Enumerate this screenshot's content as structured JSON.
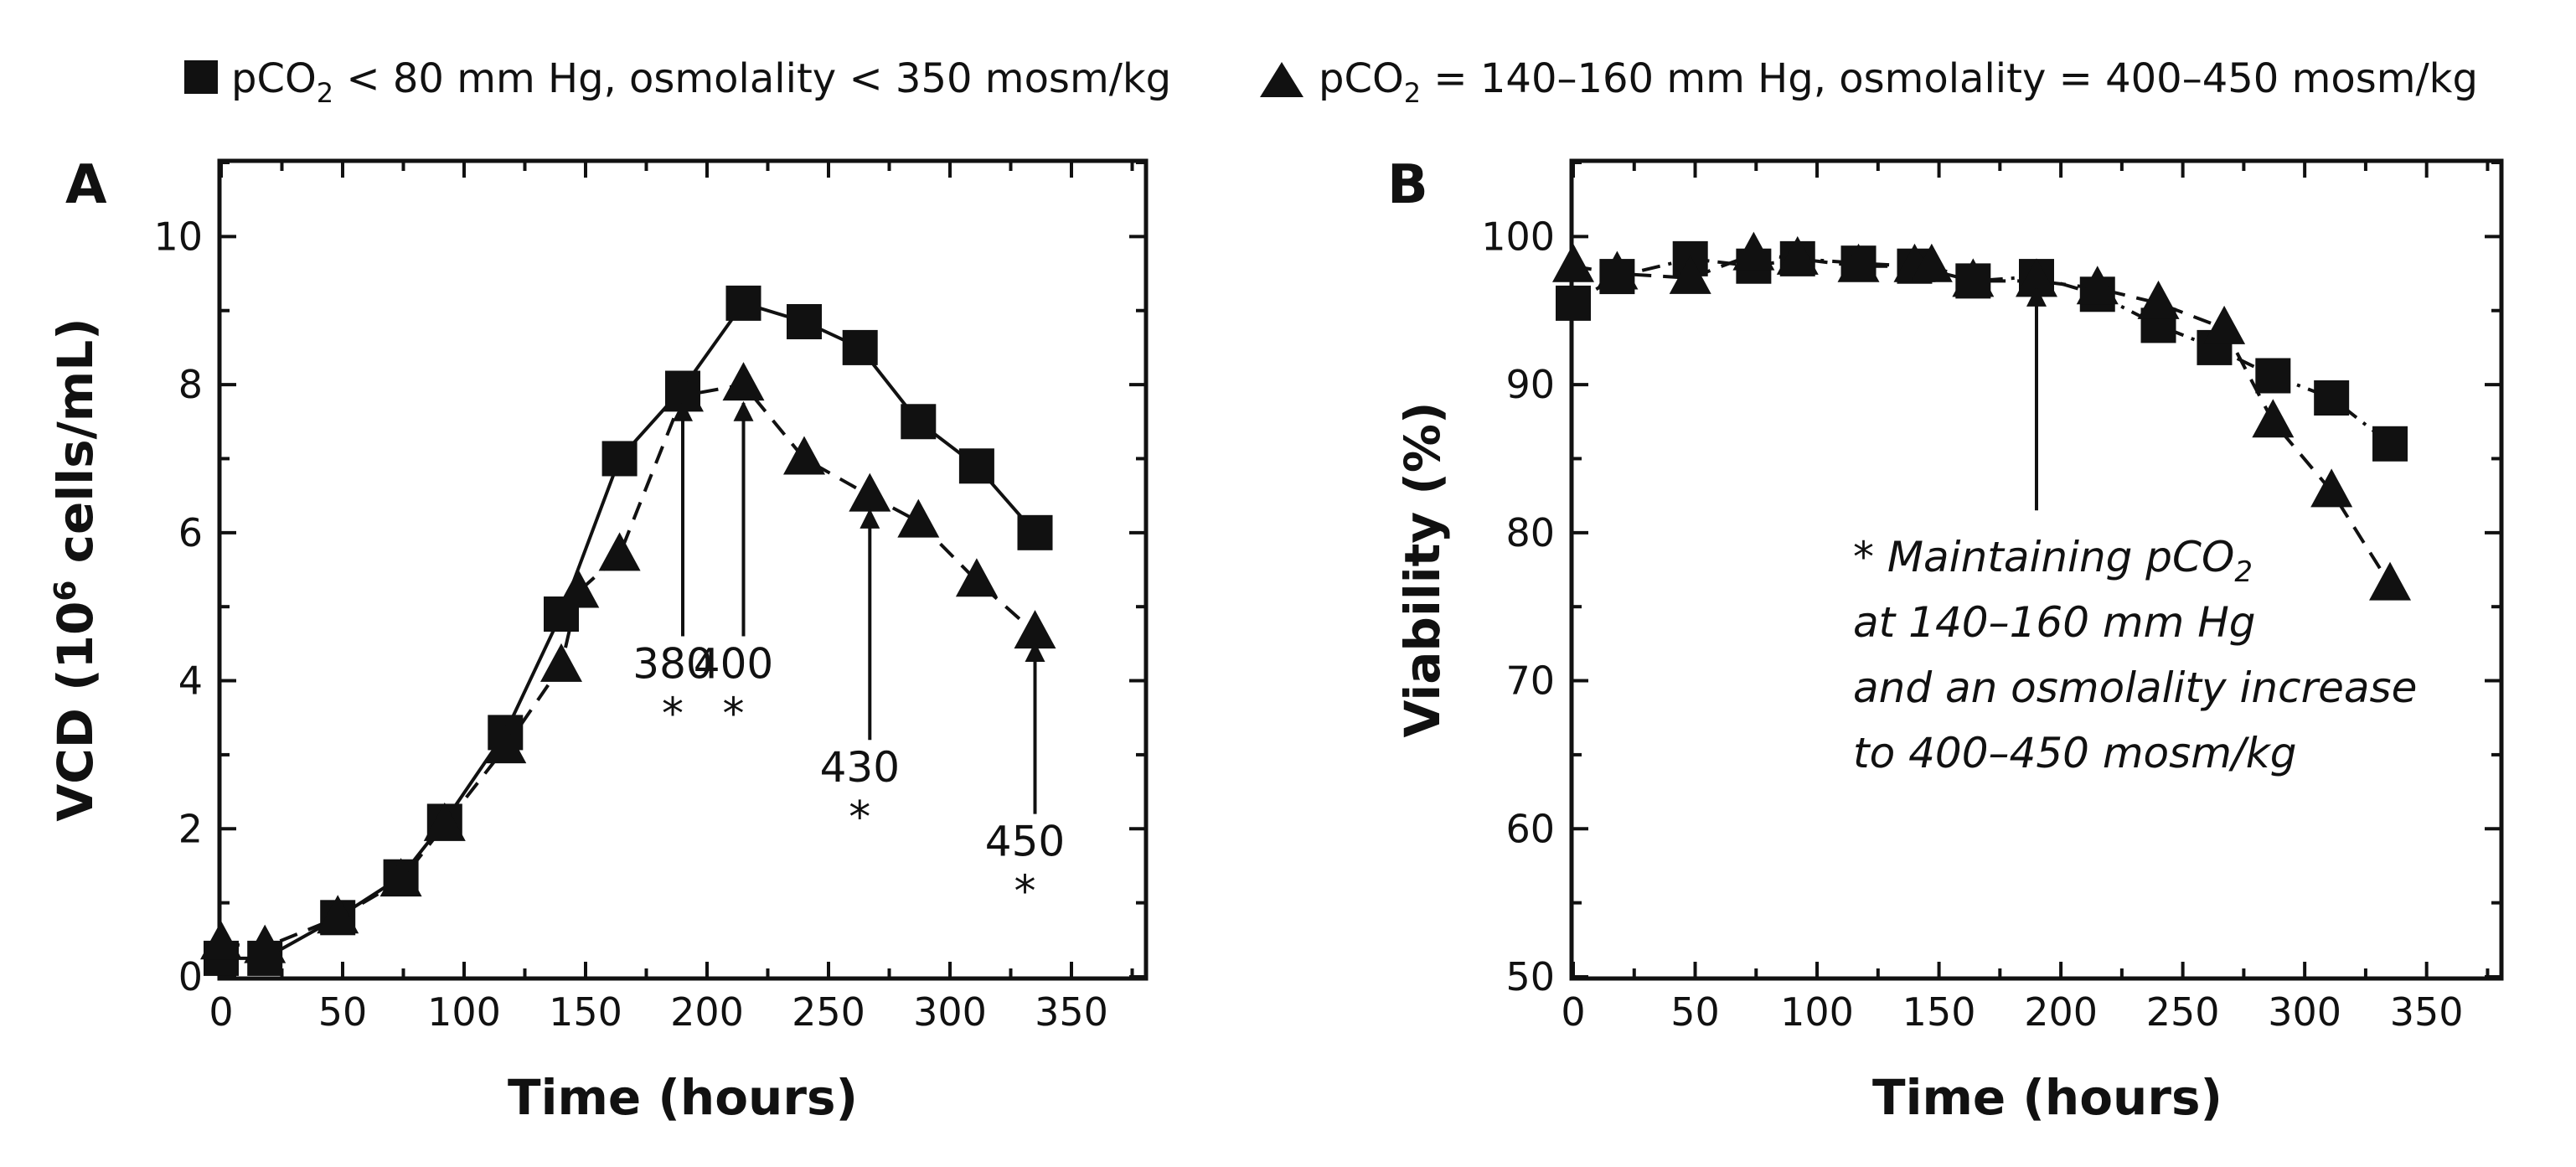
{
  "legend": {
    "entries": [
      {
        "marker": "square",
        "gas": "pCO",
        "sub": "2",
        "rest": " < 80 mm Hg, osmolality < 350 mosm/kg"
      },
      {
        "marker": "triangle",
        "gas": "pCO",
        "sub": "2",
        "rest": " = 140–160 mm Hg, osmolality = 400–450 mosm/kg"
      }
    ]
  },
  "chart_data": [
    {
      "panel": "A",
      "type": "line",
      "xlabel": "Time (hours)",
      "ylabel_pre": "VCD (10",
      "ylabel_sup": "6",
      "ylabel_post": " cells/mL)",
      "xlim": [
        0,
        380
      ],
      "ylim": [
        0,
        11
      ],
      "xticks": [
        0,
        50,
        100,
        150,
        200,
        250,
        300,
        350
      ],
      "yticks": [
        0,
        2,
        4,
        6,
        8,
        10
      ],
      "series": [
        {
          "marker": "square",
          "line": "solid",
          "x": [
            0,
            18,
            48,
            74,
            92,
            117,
            140,
            164,
            190,
            215,
            240,
            263,
            287,
            311,
            335
          ],
          "y": [
            0.25,
            0.25,
            0.8,
            1.35,
            2.1,
            3.3,
            4.9,
            7.0,
            7.95,
            9.1,
            8.85,
            8.5,
            7.5,
            6.9,
            6.0
          ]
        },
        {
          "marker": "triangle",
          "line": "dashed",
          "x": [
            0,
            18,
            48,
            74,
            92,
            117,
            140,
            147,
            164,
            190,
            215,
            240,
            267,
            287,
            311,
            335
          ],
          "y": [
            0.45,
            0.4,
            0.8,
            1.3,
            2.05,
            3.1,
            4.2,
            5.2,
            5.7,
            7.85,
            8.0,
            7.0,
            6.5,
            6.15,
            5.35,
            4.65
          ]
        }
      ],
      "annotations": [
        {
          "label": "380",
          "star": "*",
          "x": 190,
          "y_from": 4.6,
          "y_to": 7.75
        },
        {
          "label": "400",
          "star": "*",
          "x": 215,
          "y_from": 4.6,
          "y_to": 7.75
        },
        {
          "label": "430",
          "star": "*",
          "x": 267,
          "y_from": 3.2,
          "y_to": 6.3
        },
        {
          "label": "450",
          "star": "*",
          "x": 335,
          "y_from": 2.2,
          "y_to": 4.5
        }
      ]
    },
    {
      "panel": "B",
      "type": "line",
      "xlabel": "Time (hours)",
      "ylabel": "Viability (%)",
      "xlim": [
        0,
        380
      ],
      "ylim": [
        50,
        105
      ],
      "xticks": [
        0,
        50,
        100,
        150,
        200,
        250,
        300,
        350
      ],
      "yticks": [
        50,
        60,
        70,
        80,
        90,
        100
      ],
      "series": [
        {
          "marker": "square",
          "line": "dash-dot",
          "x": [
            0,
            18,
            48,
            74,
            92,
            117,
            140,
            164,
            190,
            215,
            240,
            263,
            287,
            311,
            335
          ],
          "y": [
            95.5,
            97.3,
            98.5,
            98.0,
            98.5,
            98.2,
            98.0,
            97.0,
            97.3,
            96.1,
            94.0,
            92.5,
            90.6,
            89.1,
            86.0
          ]
        },
        {
          "marker": "triangle",
          "line": "dashed",
          "x": [
            0,
            18,
            48,
            74,
            92,
            117,
            140,
            147,
            164,
            190,
            215,
            240,
            267,
            287,
            311,
            335
          ],
          "y": [
            98.0,
            97.5,
            97.2,
            98.8,
            98.5,
            98.0,
            98.0,
            98.0,
            97.0,
            97.0,
            96.5,
            95.5,
            93.8,
            87.5,
            82.8,
            76.5
          ]
        }
      ],
      "annotations": [
        {
          "x": 190,
          "y_from": 81.5,
          "y_to": 96.5
        }
      ],
      "note": {
        "line1_pre": "* Maintaining pCO",
        "line1_sub": "2",
        "line2": "at 140–160 mm Hg",
        "line3": "and an osmolality increase",
        "line4": "to 400–450 mosm/kg"
      }
    }
  ]
}
